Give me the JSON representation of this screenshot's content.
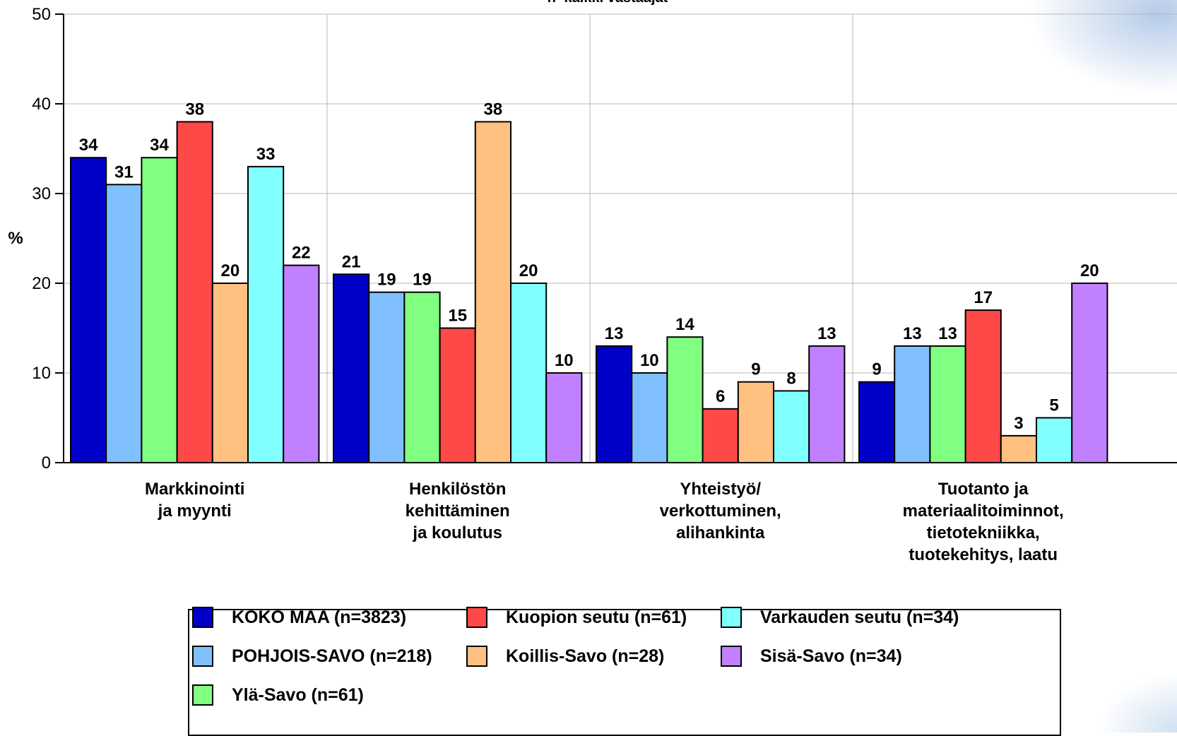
{
  "subtitle": "n=kaikki vastaajat",
  "chart_data": {
    "type": "bar",
    "ylabel": "%",
    "ylim": [
      0,
      50
    ],
    "yticks": [
      0,
      10,
      20,
      30,
      40,
      50
    ],
    "grid": true,
    "categories": [
      [
        "Markkinointi",
        "ja myynti"
      ],
      [
        "Henkilöstön",
        "kehittäminen",
        "ja koulutus"
      ],
      [
        "Yhteistyö/",
        "verkottuminen,",
        "alihankinta"
      ],
      [
        "Tuotanto ja",
        "materiaalitoiminnot,",
        "tietotekniikka,",
        "tuotekehitys, laatu"
      ]
    ],
    "series": [
      {
        "name": "KOKO MAA (n=3823)",
        "color": "#0000c8",
        "values": [
          34,
          21,
          13,
          9
        ]
      },
      {
        "name": "POHJOIS-SAVO (n=218)",
        "color": "#80c0ff",
        "values": [
          31,
          19,
          10,
          13
        ]
      },
      {
        "name": "Ylä-Savo (n=61)",
        "color": "#80ff80",
        "values": [
          34,
          19,
          14,
          13
        ]
      },
      {
        "name": "Kuopion seutu (n=61)",
        "color": "#ff4848",
        "values": [
          38,
          15,
          6,
          17
        ]
      },
      {
        "name": "Koillis-Savo (n=28)",
        "color": "#ffc080",
        "values": [
          20,
          38,
          9,
          3
        ]
      },
      {
        "name": "Varkauden seutu (n=34)",
        "color": "#80ffff",
        "values": [
          33,
          20,
          8,
          5
        ]
      },
      {
        "name": "Sisä-Savo (n=34)",
        "color": "#c080ff",
        "values": [
          22,
          10,
          13,
          20
        ]
      }
    ],
    "legend_position": "bottom"
  }
}
